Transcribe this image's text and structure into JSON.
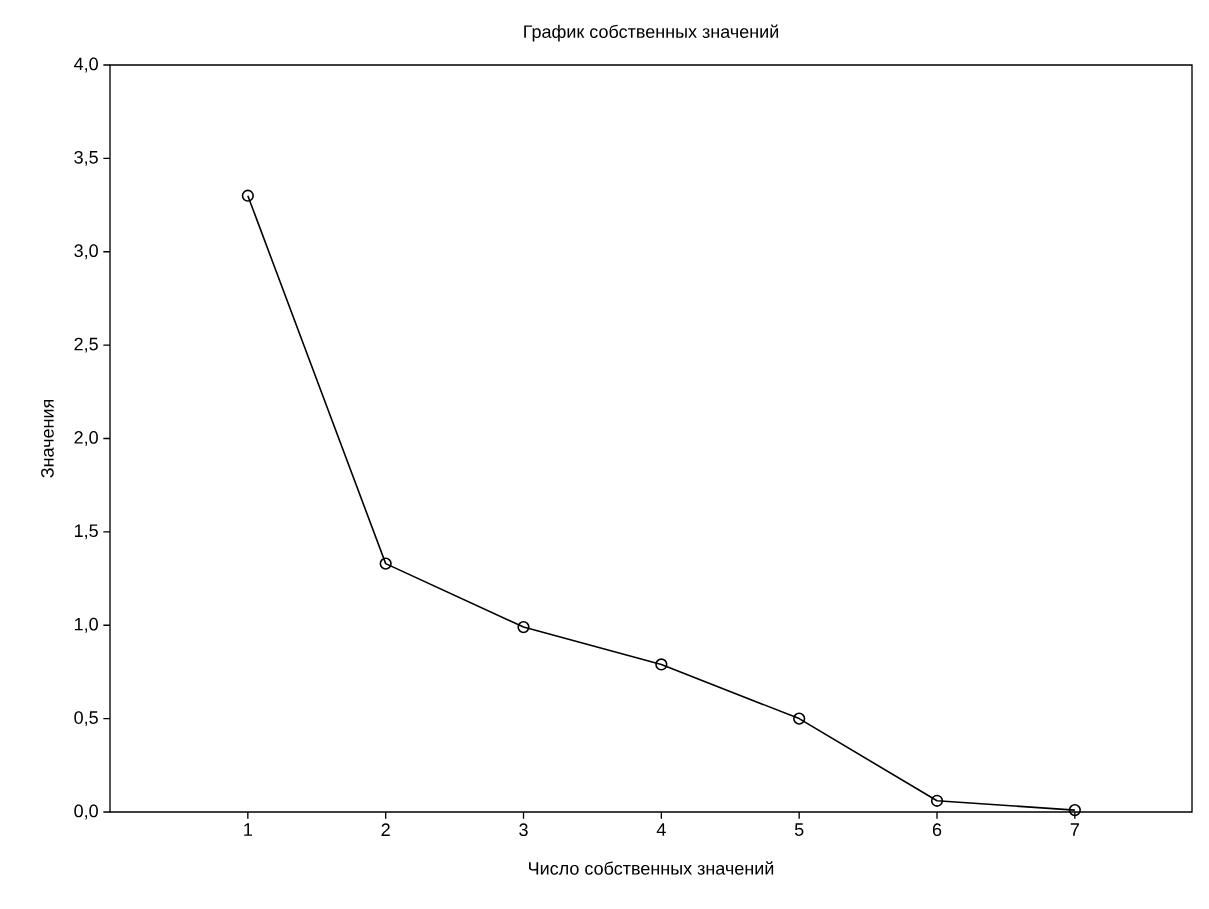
{
  "chart_data": {
    "type": "line",
    "title": "График собственных значений",
    "xlabel": "Число собственных значений",
    "ylabel": "Значения",
    "x": [
      1,
      2,
      3,
      4,
      5,
      6,
      7
    ],
    "series": [
      {
        "color": "#000000",
        "values": [
          3.3,
          1.33,
          0.99,
          0.79,
          0.5,
          0.06,
          0.01
        ]
      }
    ],
    "xlim": [
      0,
      7.85
    ],
    "xticks": [
      1,
      2,
      3,
      4,
      5,
      6,
      7
    ],
    "ylim": [
      0,
      4
    ],
    "yticks": [
      {
        "value": 0,
        "label": "0,0"
      },
      {
        "value": 0.5,
        "label": "0,5"
      },
      {
        "value": 1,
        "label": "1,0"
      },
      {
        "value": 1.5,
        "label": "1,5"
      },
      {
        "value": 2,
        "label": "2,0"
      },
      {
        "value": 2.5,
        "label": "2,5"
      },
      {
        "value": 3,
        "label": "3,0"
      },
      {
        "value": 3.5,
        "label": "3,5"
      },
      {
        "value": 4,
        "label": "4,0"
      }
    ],
    "marker": "circle",
    "line_style": "solid",
    "grid": false
  }
}
